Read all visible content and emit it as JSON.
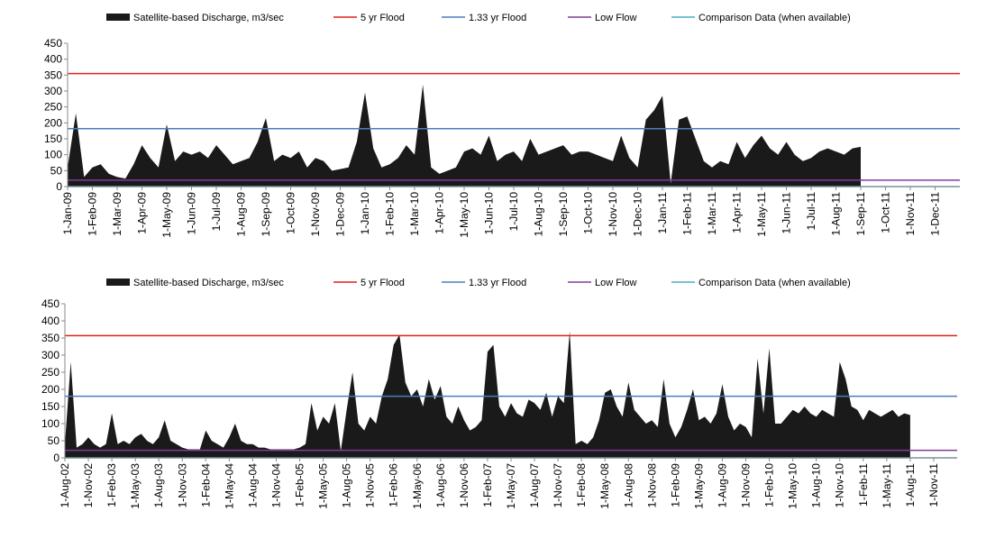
{
  "chart_data": [
    {
      "type": "area",
      "categories": [
        "1-Jan-09",
        null,
        null,
        "1-Feb-09",
        null,
        null,
        "1-Mar-09",
        null,
        null,
        "1-Apr-09",
        null,
        null,
        "1-May-09",
        null,
        null,
        "1-Jun-09",
        null,
        null,
        "1-Jul-09",
        null,
        null,
        "1-Aug-09",
        null,
        null,
        "1-Sep-09",
        null,
        null,
        "1-Oct-09",
        null,
        null,
        "1-Nov-09",
        null,
        null,
        "1-Dec-09",
        null,
        null,
        "1-Jan-10",
        null,
        null,
        "1-Feb-10",
        null,
        null,
        "1-Mar-10",
        null,
        null,
        "1-Apr-10",
        null,
        null,
        "1-May-10",
        null,
        null,
        "1-Jun-10",
        null,
        null,
        "1-Jul-10",
        null,
        null,
        "1-Aug-10",
        null,
        null,
        "1-Sep-10",
        null,
        null,
        "1-Oct-10",
        null,
        null,
        "1-Nov-10",
        null,
        null,
        "1-Dec-10",
        null,
        null,
        "1-Jan-11",
        null,
        null,
        "1-Feb-11",
        null,
        null,
        "1-Mar-11",
        null,
        null,
        "1-Apr-11",
        null,
        null,
        "1-May-11",
        null,
        null,
        "1-Jun-11",
        null,
        null,
        "1-Jul-11",
        null,
        null,
        "1-Aug-11",
        null,
        null,
        "1-Sep-11",
        null,
        null,
        "1-Oct-11",
        null,
        null,
        "1-Nov-11",
        null,
        null,
        "1-Dec-11",
        null,
        null
      ],
      "series": [
        {
          "name": "Satellite-based Discharge, m3/sec",
          "color": "#1a1a1a",
          "values": [
            60,
            230,
            30,
            60,
            70,
            40,
            30,
            25,
            70,
            130,
            90,
            60,
            195,
            80,
            110,
            100,
            110,
            90,
            130,
            100,
            70,
            80,
            90,
            140,
            215,
            80,
            100,
            90,
            110,
            60,
            90,
            80,
            50,
            55,
            60,
            140,
            295,
            120,
            60,
            70,
            90,
            130,
            100,
            320,
            60,
            40,
            50,
            60,
            110,
            120,
            100,
            160,
            80,
            100,
            110,
            80,
            150,
            100,
            110,
            120,
            130,
            100,
            110,
            110,
            100,
            90,
            80,
            160,
            90,
            60,
            210,
            240,
            285,
            10,
            210,
            220,
            150,
            80,
            60,
            80,
            70,
            140,
            90,
            130,
            160,
            120,
            100,
            140,
            100,
            80,
            90,
            110,
            120,
            110,
            100,
            120,
            125,
            null,
            null,
            null,
            null,
            null,
            null,
            null,
            null,
            null,
            null,
            null
          ]
        }
      ],
      "reference_lines": [
        {
          "name": "5 yr Flood",
          "color": "#e0201b",
          "value": 355
        },
        {
          "name": "1.33 yr Flood",
          "color": "#4a7ebb",
          "value": 182
        },
        {
          "name": "Low Flow",
          "color": "#7d3f98",
          "value": 20
        },
        {
          "name": "Comparison Data (when available)",
          "color": "#4bacc6",
          "value": 0
        }
      ],
      "ylim": [
        0,
        450
      ],
      "yticks": [
        0,
        50,
        100,
        150,
        200,
        250,
        300,
        350,
        400,
        450
      ]
    },
    {
      "type": "area",
      "categories": [
        "1-Aug-02",
        null,
        null,
        null,
        "1-Nov-02",
        null,
        null,
        null,
        "1-Feb-03",
        null,
        null,
        null,
        "1-May-03",
        null,
        null,
        null,
        "1-Aug-03",
        null,
        null,
        null,
        "1-Nov-03",
        null,
        null,
        null,
        "1-Feb-04",
        null,
        null,
        null,
        "1-May-04",
        null,
        null,
        null,
        "1-Aug-04",
        null,
        null,
        null,
        "1-Nov-04",
        null,
        null,
        null,
        "1-Feb-05",
        null,
        null,
        null,
        "1-May-05",
        null,
        null,
        null,
        "1-Aug-05",
        null,
        null,
        null,
        "1-Nov-05",
        null,
        null,
        null,
        "1-Feb-06",
        null,
        null,
        null,
        "1-May-06",
        null,
        null,
        null,
        "1-Aug-06",
        null,
        null,
        null,
        "1-Nov-06",
        null,
        null,
        null,
        "1-Feb-07",
        null,
        null,
        null,
        "1-May-07",
        null,
        null,
        null,
        "1-Aug-07",
        null,
        null,
        null,
        "1-Nov-07",
        null,
        null,
        null,
        "1-Feb-08",
        null,
        null,
        null,
        "1-May-08",
        null,
        null,
        null,
        "1-Aug-08",
        null,
        null,
        null,
        "1-Nov-08",
        null,
        null,
        null,
        "1-Feb-09",
        null,
        null,
        null,
        "1-May-09",
        null,
        null,
        null,
        "1-Aug-09",
        null,
        null,
        null,
        "1-Nov-09",
        null,
        null,
        null,
        "1-Feb-10",
        null,
        null,
        null,
        "1-May-10",
        null,
        null,
        null,
        "1-Aug-10",
        null,
        null,
        null,
        "1-Nov-10",
        null,
        null,
        null,
        "1-Feb-11",
        null,
        null,
        null,
        "1-May-11",
        null,
        null,
        null,
        "1-Aug-11",
        null,
        null,
        null,
        "1-Nov-11",
        null,
        null,
        null
      ],
      "series": [
        {
          "name": "Satellite-based Discharge, m3/sec",
          "color": "#1a1a1a",
          "values": [
            40,
            280,
            30,
            40,
            60,
            40,
            30,
            40,
            130,
            40,
            50,
            40,
            60,
            70,
            50,
            40,
            60,
            110,
            50,
            40,
            30,
            25,
            25,
            25,
            80,
            50,
            40,
            30,
            60,
            100,
            50,
            40,
            40,
            30,
            30,
            25,
            25,
            25,
            25,
            25,
            30,
            40,
            160,
            80,
            120,
            100,
            160,
            20,
            140,
            250,
            100,
            80,
            120,
            100,
            180,
            230,
            330,
            360,
            220,
            180,
            200,
            150,
            230,
            170,
            210,
            120,
            100,
            150,
            110,
            80,
            90,
            110,
            310,
            330,
            150,
            120,
            160,
            130,
            120,
            170,
            160,
            140,
            190,
            120,
            180,
            160,
            370,
            40,
            50,
            40,
            60,
            110,
            190,
            200,
            150,
            120,
            220,
            140,
            120,
            100,
            110,
            90,
            230,
            100,
            60,
            90,
            140,
            200,
            110,
            120,
            100,
            130,
            215,
            120,
            80,
            100,
            90,
            60,
            290,
            130,
            320,
            100,
            100,
            120,
            140,
            130,
            150,
            130,
            120,
            140,
            130,
            120,
            280,
            230,
            150,
            140,
            110,
            140,
            130,
            120,
            130,
            140,
            120,
            130,
            125,
            null,
            null,
            null,
            null,
            null,
            null,
            null
          ]
        }
      ],
      "reference_lines": [
        {
          "name": "5 yr Flood",
          "color": "#e0201b",
          "value": 357
        },
        {
          "name": "1.33 yr Flood",
          "color": "#4a7ebb",
          "value": 180
        },
        {
          "name": "Low Flow",
          "color": "#7d3f98",
          "value": 22
        },
        {
          "name": "Comparison Data (when available)",
          "color": "#4bacc6",
          "value": 0
        }
      ],
      "ylim": [
        0,
        450
      ],
      "yticks": [
        0,
        50,
        100,
        150,
        200,
        250,
        300,
        350,
        400,
        450
      ]
    }
  ]
}
